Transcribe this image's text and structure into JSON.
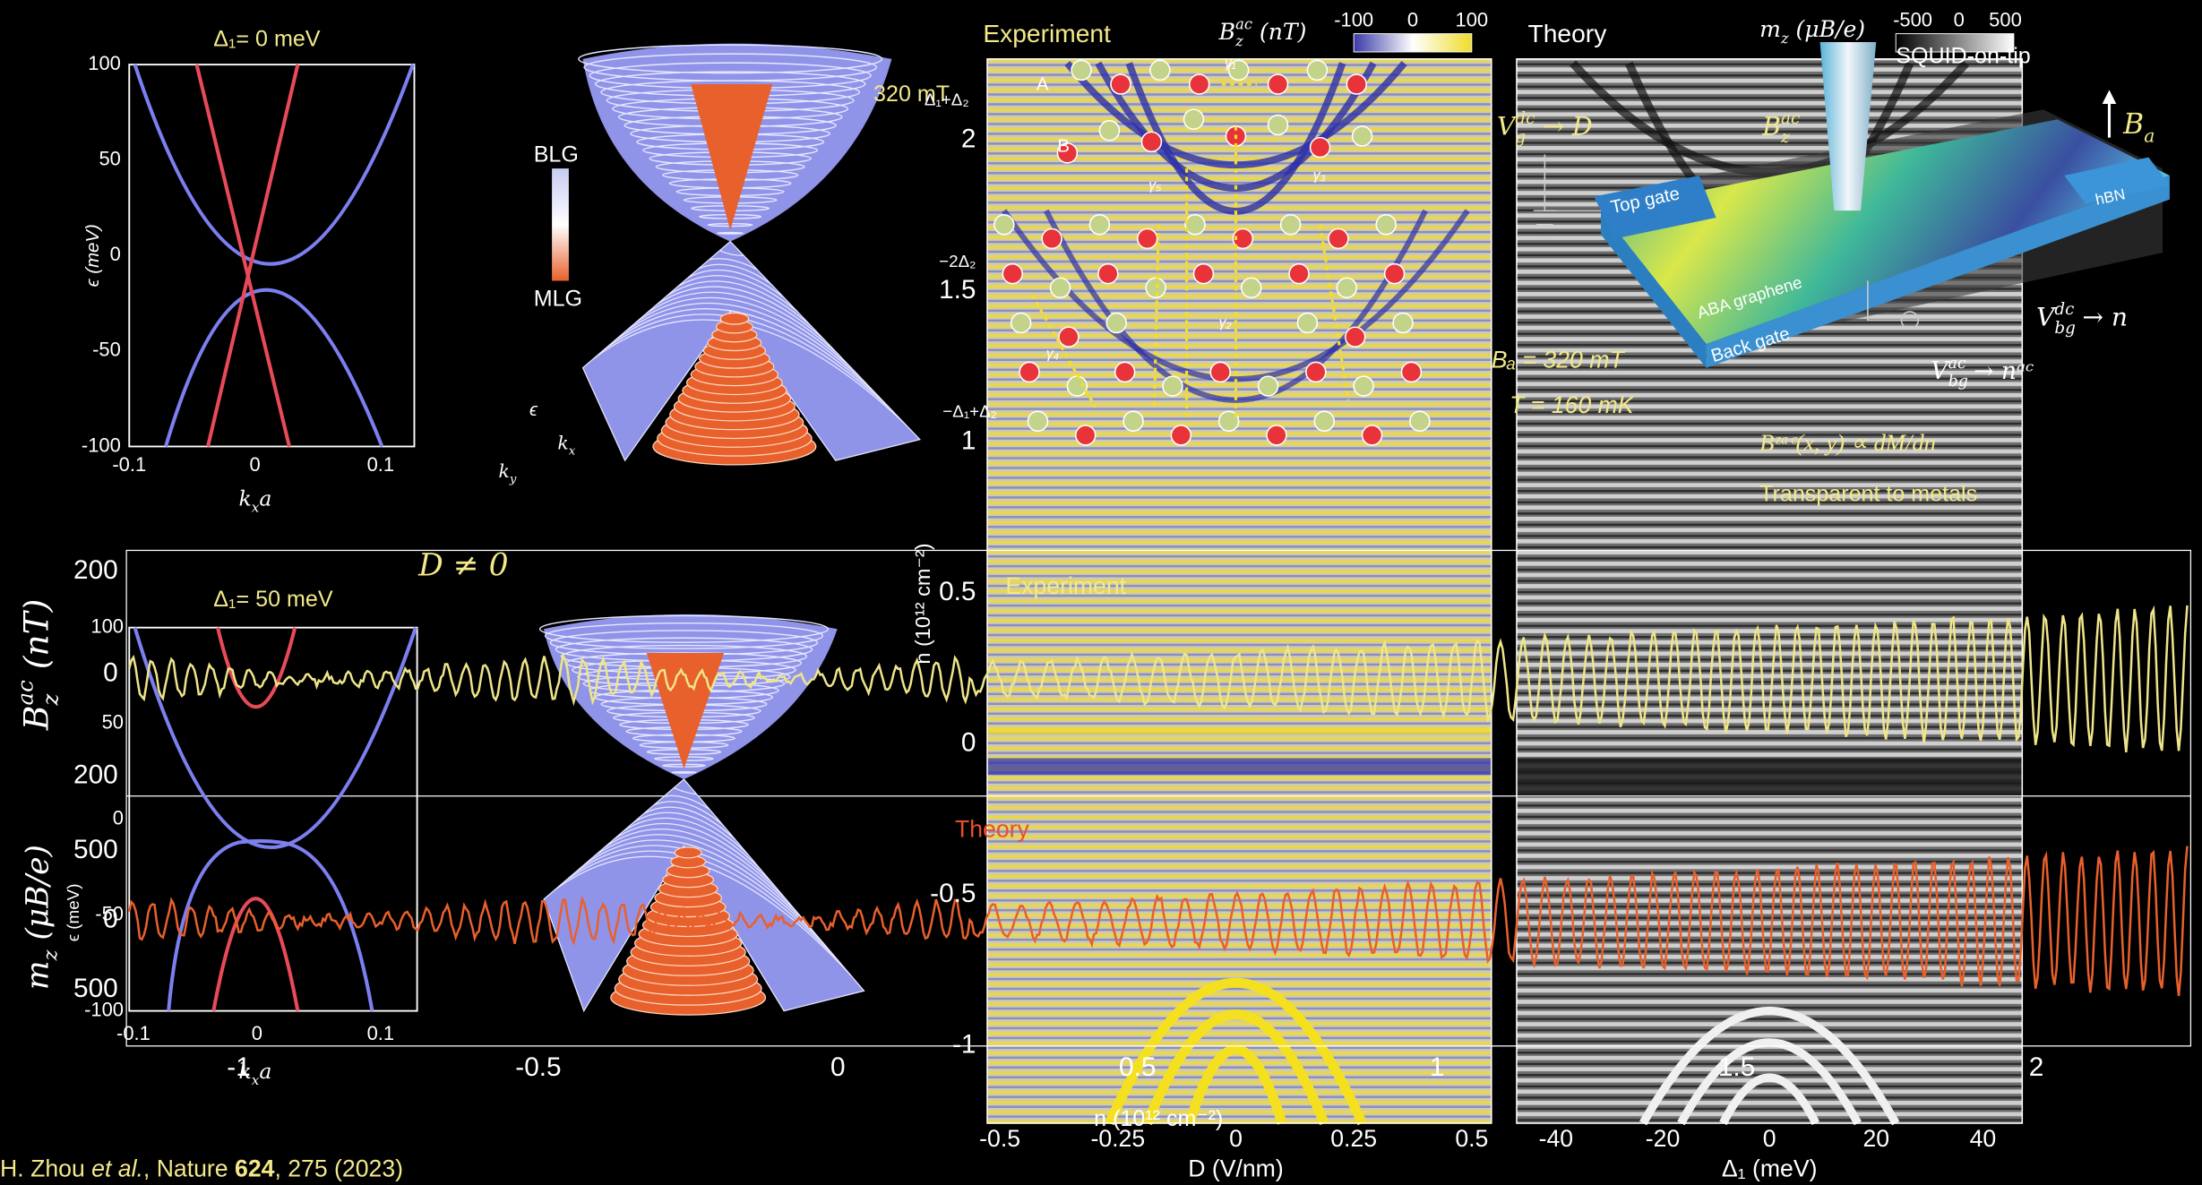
{
  "band_plot_zero": {
    "title": "Δ₁= 0 meV",
    "y_label": "ϵ (meV)",
    "x_label": {
      "base": "k",
      "sub": "x",
      "tail": "a"
    },
    "yticks": [
      "100",
      "50",
      "0",
      "-50",
      "-100"
    ],
    "xticks": [
      "-0.1",
      "0",
      "0.1"
    ]
  },
  "band_3d": {
    "legend_top": "BLG",
    "legend_bottom": "MLG",
    "axis_e": "ϵ",
    "axis_kx": {
      "base": "k",
      "sub": "x"
    },
    "axis_ky": {
      "base": "k",
      "sub": "y"
    }
  },
  "experiment": {
    "title": "Experiment",
    "colorbar_label": {
      "base": "B",
      "sub": "z",
      "sup": "ac",
      "tail": " (nT)"
    },
    "colorbar_ticks": [
      "-100",
      "0",
      "100"
    ],
    "field": "320 mT",
    "levels": [
      "Δ₁+Δ₂",
      "−2Δ₂",
      "−Δ₁+Δ₂"
    ],
    "sublattice": [
      "A",
      "B"
    ],
    "hoppings": [
      "γ₁",
      "γ₅",
      "γ₃",
      "γ₂",
      "γ₄"
    ],
    "yticks": [
      "2",
      "1.5",
      "1",
      "0.5",
      "0",
      "-0.5",
      "-1"
    ],
    "y_label": "n (10¹² cm⁻²)",
    "xticks": [
      "-0.5",
      "-0.25",
      "0",
      "0.25",
      "0.5"
    ],
    "x_label": "D (V/nm)"
  },
  "theory": {
    "title": "Theory",
    "colorbar_label": {
      "base": "m",
      "sub": "z",
      "tail": " (μB/e)"
    },
    "colorbar_ticks": [
      "-500",
      "0",
      "500"
    ],
    "probe": "SQUID-on-tip",
    "applied_field": {
      "base": "B",
      "sub": "a"
    },
    "gate_dc": {
      "base": "V",
      "sub": "g",
      "sup": "dc",
      "tail": " → D"
    },
    "signal": {
      "base": "B",
      "sub": "z",
      "sup": "ac"
    },
    "layers": [
      "Top gate",
      "hBN",
      "ABA graphene",
      "Back gate"
    ],
    "backgate_dc": {
      "base": "V",
      "sub": "bg",
      "sup": "dc",
      "tail": " → n"
    },
    "backgate_ac": {
      "base": "V",
      "sub": "bg",
      "sup": "ac",
      "tail": " → nᵃᶜ"
    },
    "conditions": [
      "Bₐ = 320 mT",
      "T = 160 mK"
    ],
    "relation": "Bᶻᵃᶜ(x, y) ∝ dM/dn",
    "note": "Transparent to metals",
    "xticks": [
      "-40",
      "-20",
      "0",
      "20",
      "40"
    ],
    "x_label": "Δ₁ (meV)"
  },
  "line_cut": {
    "condition": "D ≠ 0",
    "inset_title": "Δ₁= 50 meV",
    "experiment_label": "Experiment",
    "theory_label": "Theory",
    "experiment_axis": {
      "base": "B",
      "sub": "z",
      "sup": "ac",
      "tail": " (nT)"
    },
    "theory_axis": {
      "base": "m",
      "sub": "z",
      "tail": " (μB/e)"
    },
    "experiment_ticks": [
      "200",
      "0",
      "200"
    ],
    "theory_ticks": [
      "500",
      "0",
      "500"
    ],
    "inset_yticks": [
      "100",
      "50",
      "0",
      "-50",
      "-100"
    ],
    "inset_xticks": [
      "-0.1",
      "0",
      "0.1"
    ],
    "inset_y_label": "ϵ (meV)",
    "inset_x_label": {
      "base": "k",
      "sub": "x",
      "tail": "a"
    },
    "xticks": [
      "-1",
      "-0.5",
      "0",
      "0.5",
      "1",
      "1.5",
      "2"
    ],
    "x_label": "n (10¹² cm⁻²)"
  },
  "citation": {
    "authors": "H. Zhou ",
    "etal": "et al.",
    "journal": ", Nature ",
    "volume": "624",
    "pages": ", 275 (2023)"
  }
}
